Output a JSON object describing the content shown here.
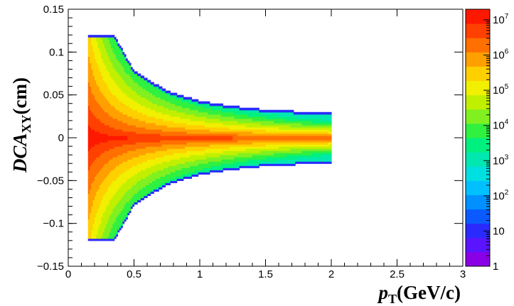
{
  "chart_data": {
    "type": "heatmap",
    "title": "",
    "xlabel_main": "p",
    "xlabel_sub": "T",
    "xlabel_unit": "(GeV/c)",
    "ylabel_main": "DCA",
    "ylabel_sub": "XY",
    "ylabel_unit": "(cm)",
    "xlim": [
      0,
      3
    ],
    "ylim": [
      -0.15,
      0.15
    ],
    "x_ticks": [
      0,
      0.5,
      1,
      1.5,
      2,
      2.5,
      3
    ],
    "x_tick_labels": [
      "0",
      "0.5",
      "1",
      "1.5",
      "2",
      "2.5",
      "3"
    ],
    "y_ticks": [
      -0.15,
      -0.1,
      -0.05,
      0,
      0.05,
      0.1,
      0.15
    ],
    "y_tick_labels": [
      "−0.15",
      "−0.1",
      "−0.05",
      "0",
      "0.05",
      "0.1",
      "0.15"
    ],
    "z_scale": "log",
    "zlim": [
      1,
      20000000
    ],
    "z_ticks": [
      1,
      10,
      100,
      1000,
      10000,
      100000,
      1000000,
      10000000
    ],
    "z_tick_labels": [
      {
        "base": "1",
        "exp": ""
      },
      {
        "base": "10",
        "exp": ""
      },
      {
        "base": "10",
        "exp": "2"
      },
      {
        "base": "10",
        "exp": "3"
      },
      {
        "base": "10",
        "exp": "4"
      },
      {
        "base": "10",
        "exp": "5"
      },
      {
        "base": "10",
        "exp": "6"
      },
      {
        "base": "10",
        "exp": "7"
      }
    ],
    "pt_range": [
      0.15,
      2.0
    ],
    "dca_cut_envelope": {
      "pt": [
        0.15,
        0.35,
        0.5,
        0.75,
        1.0,
        1.25,
        1.5,
        1.75,
        2.0
      ],
      "dca_max": [
        0.12,
        0.12,
        0.078,
        0.055,
        0.043,
        0.037,
        0.033,
        0.031,
        0.03
      ]
    },
    "peak_value_near_zero": 20000000,
    "palette": [
      "#8a00e6",
      "#5a14ff",
      "#2a2aff",
      "#0a5aff",
      "#0090ff",
      "#00c0ff",
      "#00e0e0",
      "#00e8b0",
      "#00f080",
      "#30f040",
      "#80f020",
      "#c0f000",
      "#f0f000",
      "#ffd000",
      "#ffa000",
      "#ff7000",
      "#ff4000",
      "#ff1800"
    ]
  }
}
